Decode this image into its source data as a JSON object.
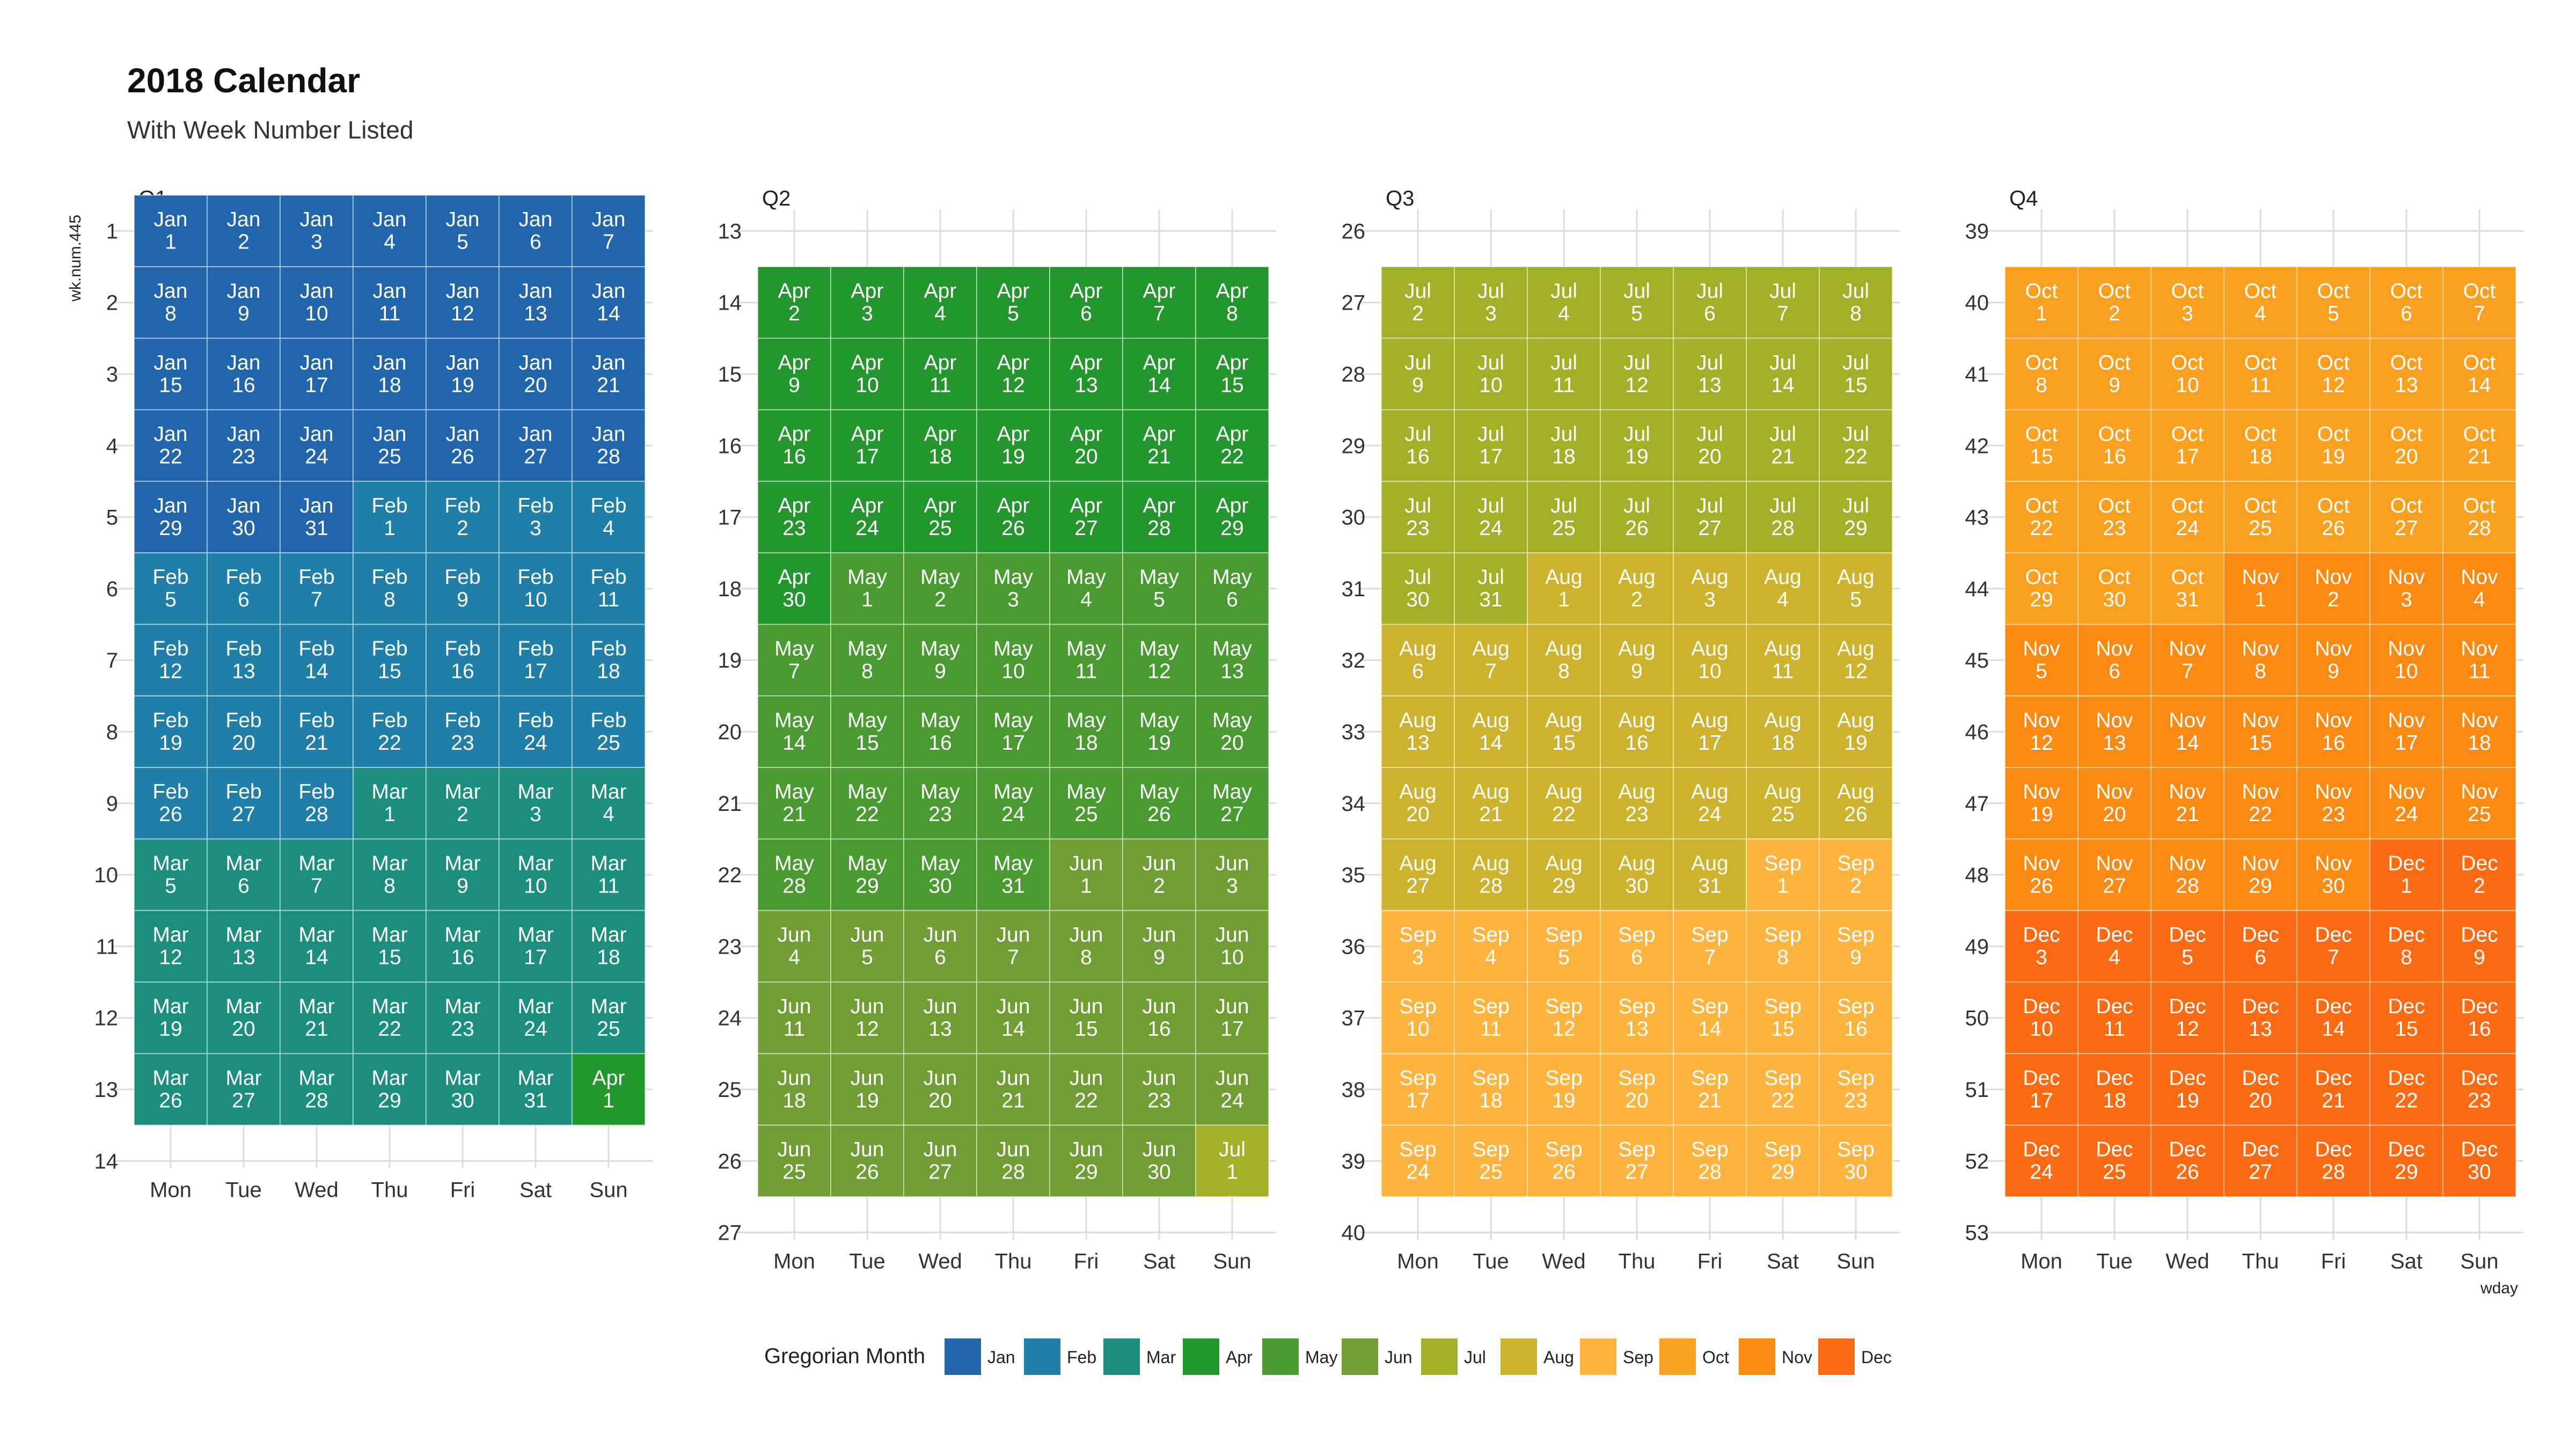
{
  "chart_data": {
    "type": "heatmap",
    "title": "2018 Calendar",
    "subtitle": "With Week Number Listed",
    "xlabel": "wday",
    "ylabel": "wk.num.445",
    "year": 2018,
    "weekdays": [
      "Mon",
      "Tue",
      "Wed",
      "Thu",
      "Fri",
      "Sat",
      "Sun"
    ],
    "panels": [
      {
        "label": "Q1",
        "week_range": [
          1,
          13
        ],
        "y_ticks": [
          1,
          2,
          3,
          4,
          5,
          6,
          7,
          8,
          9,
          10,
          11,
          12,
          13,
          14
        ]
      },
      {
        "label": "Q2",
        "week_range": [
          14,
          26
        ],
        "y_ticks": [
          13,
          14,
          15,
          16,
          17,
          18,
          19,
          20,
          21,
          22,
          23,
          24,
          25,
          26,
          27
        ]
      },
      {
        "label": "Q3",
        "week_range": [
          27,
          39
        ],
        "y_ticks": [
          26,
          27,
          28,
          29,
          30,
          31,
          32,
          33,
          34,
          35,
          36,
          37,
          38,
          39,
          40
        ]
      },
      {
        "label": "Q4",
        "week_range": [
          40,
          52
        ],
        "y_ticks": [
          39,
          40,
          41,
          42,
          43,
          44,
          45,
          46,
          47,
          48,
          49,
          50,
          51,
          52,
          53
        ]
      }
    ],
    "months": [
      {
        "abbr": "Jan",
        "days": 31,
        "color": "#2166ac"
      },
      {
        "abbr": "Feb",
        "days": 28,
        "color": "#1f7fa8"
      },
      {
        "abbr": "Mar",
        "days": 31,
        "color": "#1b8e7e"
      },
      {
        "abbr": "Apr",
        "days": 30,
        "color": "#24962e"
      },
      {
        "abbr": "May",
        "days": 31,
        "color": "#4a9a32"
      },
      {
        "abbr": "Jun",
        "days": 30,
        "color": "#709e34"
      },
      {
        "abbr": "Jul",
        "days": 31,
        "color": "#a2b028"
      },
      {
        "abbr": "Aug",
        "days": 31,
        "color": "#cdb22e"
      },
      {
        "abbr": "Sep",
        "days": 30,
        "color": "#fdb43f"
      },
      {
        "abbr": "Oct",
        "days": 31,
        "color": "#fba01e"
      },
      {
        "abbr": "Nov",
        "days": 30,
        "color": "#fb8a12"
      },
      {
        "abbr": "Dec",
        "days": 31,
        "color": "#fc6a12"
      }
    ],
    "first_weekday_index": 0,
    "first_week_number": 1,
    "week_range": [
      1,
      52
    ],
    "legend": {
      "title": "Gregorian Month",
      "position": "bottom"
    }
  }
}
